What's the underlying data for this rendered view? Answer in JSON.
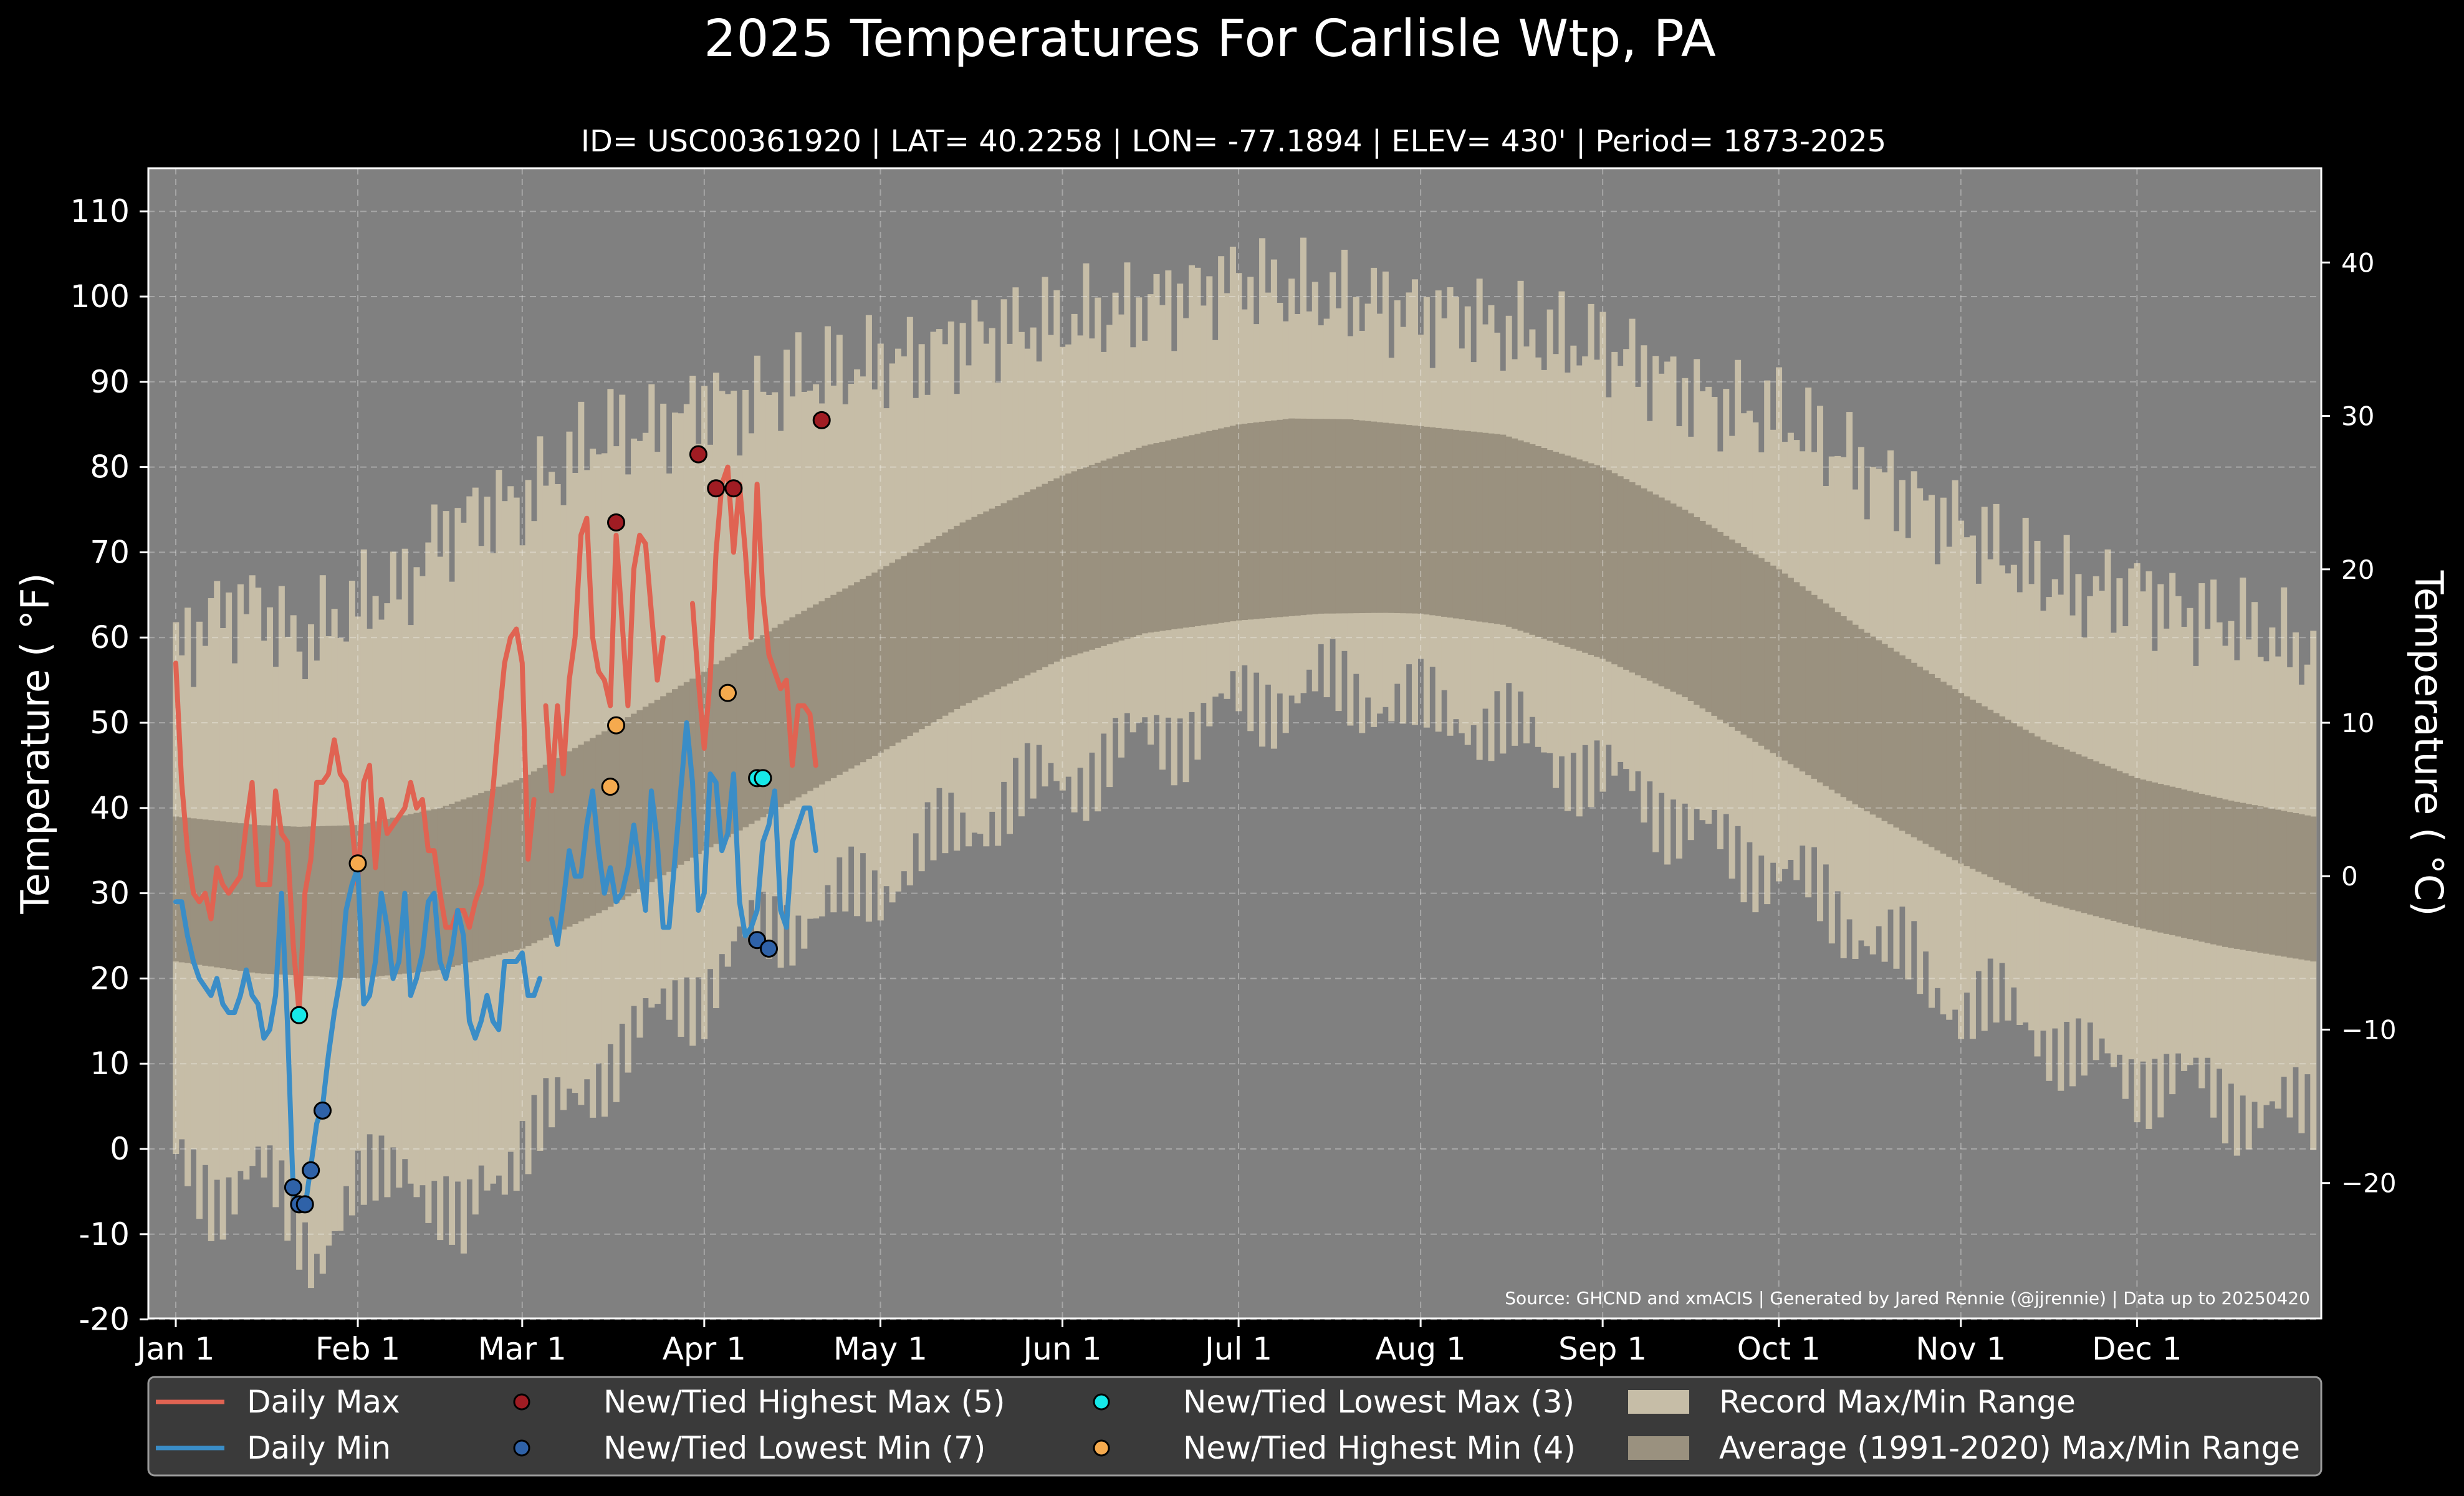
{
  "chart_data": {
    "type": "line",
    "title": "2025 Temperatures For Carlisle Wtp, PA",
    "subtitle": "ID= USC00361920 | LAT= 40.2258 | LON= -77.1894 | ELEV= 430' | Period= 1873-2025",
    "ylabel": "Temperature ($^\\circ$F)",
    "ylabel_display": "Temperature ( °F)",
    "ylabel_right_display": "Temperature ( °C)",
    "source_note": "Source: GHCND and xmACIS | Generated by Jared Rennie (@jjrennie) | Data up to 20250420",
    "xlim": [
      1,
      365
    ],
    "ylim": [
      -20,
      115
    ],
    "x_unit": "day of year 2025 (1 = Jan 1)",
    "x_ticks": [
      {
        "day": 1,
        "label": "Jan 1"
      },
      {
        "day": 32,
        "label": "Feb 1"
      },
      {
        "day": 60,
        "label": "Mar 1"
      },
      {
        "day": 91,
        "label": "Apr 1"
      },
      {
        "day": 121,
        "label": "May 1"
      },
      {
        "day": 152,
        "label": "Jun 1"
      },
      {
        "day": 182,
        "label": "Jul 1"
      },
      {
        "day": 213,
        "label": "Aug 1"
      },
      {
        "day": 244,
        "label": "Sep 1"
      },
      {
        "day": 274,
        "label": "Oct 1"
      },
      {
        "day": 305,
        "label": "Nov 1"
      },
      {
        "day": 335,
        "label": "Dec 1"
      }
    ],
    "y_ticks": [
      -20,
      -10,
      0,
      10,
      20,
      30,
      40,
      50,
      60,
      70,
      80,
      90,
      100,
      110
    ],
    "y_ticks_right_c": [
      -20,
      -10,
      0,
      10,
      20,
      30,
      40
    ],
    "grid": true,
    "legend_position": "bottom",
    "colors": {
      "background": "#000000",
      "plot_bg": "#808080",
      "record_range": "#c6bda7",
      "average_range": "#9a917f",
      "daily_max": "#e06352",
      "daily_min": "#3a8dc7",
      "new_high_max": "#a01c23",
      "new_low_min": "#2f62a8",
      "new_low_max": "#16e8e8",
      "new_high_min": "#f5aa4e"
    },
    "average_range": {
      "min_anchors": [
        [
          1,
          22
        ],
        [
          15,
          20.6
        ],
        [
          32,
          20
        ],
        [
          46,
          21
        ],
        [
          60,
          23.5
        ],
        [
          74,
          28
        ],
        [
          91,
          35
        ],
        [
          105,
          40.5
        ],
        [
          121,
          46.5
        ],
        [
          135,
          52
        ],
        [
          152,
          57.5
        ],
        [
          166,
          60.5
        ],
        [
          182,
          62
        ],
        [
          196,
          62.8
        ],
        [
          207,
          62.9
        ],
        [
          213,
          62.8
        ],
        [
          227,
          61.5
        ],
        [
          244,
          57.5
        ],
        [
          258,
          53
        ],
        [
          274,
          46
        ],
        [
          288,
          40
        ],
        [
          305,
          33.5
        ],
        [
          319,
          29
        ],
        [
          335,
          26
        ],
        [
          350,
          23.7
        ],
        [
          365,
          22
        ]
      ],
      "max_anchors": [
        [
          1,
          39
        ],
        [
          15,
          38
        ],
        [
          22,
          37.8
        ],
        [
          32,
          38
        ],
        [
          46,
          40
        ],
        [
          60,
          43.5
        ],
        [
          74,
          49
        ],
        [
          91,
          56
        ],
        [
          105,
          62
        ],
        [
          121,
          68
        ],
        [
          135,
          73.5
        ],
        [
          152,
          79
        ],
        [
          166,
          82.5
        ],
        [
          182,
          85
        ],
        [
          191,
          85.7
        ],
        [
          201,
          85.6
        ],
        [
          213,
          84.8
        ],
        [
          227,
          83.8
        ],
        [
          244,
          80
        ],
        [
          258,
          75
        ],
        [
          274,
          68
        ],
        [
          288,
          61
        ],
        [
          305,
          53.5
        ],
        [
          319,
          48
        ],
        [
          335,
          43.5
        ],
        [
          350,
          41
        ],
        [
          365,
          39
        ]
      ]
    },
    "record_range": {
      "max_anchors": [
        [
          1,
          58
        ],
        [
          8,
          63
        ],
        [
          15,
          64
        ],
        [
          22,
          59
        ],
        [
          32,
          64
        ],
        [
          40,
          66
        ],
        [
          46,
          72
        ],
        [
          53,
          75
        ],
        [
          60,
          76
        ],
        [
          67,
          80
        ],
        [
          74,
          84
        ],
        [
          81,
          84
        ],
        [
          88,
          86
        ],
        [
          91,
          88
        ],
        [
          98,
          87
        ],
        [
          105,
          90
        ],
        [
          112,
          91
        ],
        [
          121,
          92
        ],
        [
          128,
          93
        ],
        [
          135,
          95
        ],
        [
          142,
          96
        ],
        [
          152,
          97
        ],
        [
          160,
          98
        ],
        [
          166,
          99
        ],
        [
          172,
          100
        ],
        [
          182,
          102
        ],
        [
          189,
          101
        ],
        [
          196,
          100
        ],
        [
          207,
          99
        ],
        [
          213,
          98
        ],
        [
          220,
          98
        ],
        [
          227,
          96
        ],
        [
          234,
          95
        ],
        [
          244,
          94
        ],
        [
          251,
          92
        ],
        [
          258,
          89
        ],
        [
          265,
          87
        ],
        [
          274,
          86
        ],
        [
          281,
          83
        ],
        [
          288,
          80
        ],
        [
          295,
          77
        ],
        [
          305,
          73
        ],
        [
          312,
          70
        ],
        [
          319,
          67
        ],
        [
          326,
          65
        ],
        [
          335,
          66
        ],
        [
          342,
          63
        ],
        [
          350,
          62
        ],
        [
          358,
          60
        ],
        [
          365,
          58
        ]
      ],
      "min_anchors": [
        [
          1,
          -2
        ],
        [
          8,
          -5
        ],
        [
          15,
          -3
        ],
        [
          22,
          -9
        ],
        [
          25,
          -12
        ],
        [
          32,
          -6
        ],
        [
          40,
          0
        ],
        [
          46,
          -8
        ],
        [
          50,
          -11
        ],
        [
          53,
          -4
        ],
        [
          60,
          1
        ],
        [
          67,
          4
        ],
        [
          74,
          10
        ],
        [
          81,
          14
        ],
        [
          88,
          18
        ],
        [
          91,
          19
        ],
        [
          98,
          24
        ],
        [
          105,
          27
        ],
        [
          112,
          28
        ],
        [
          121,
          31
        ],
        [
          128,
          35
        ],
        [
          135,
          37
        ],
        [
          142,
          41
        ],
        [
          152,
          43
        ],
        [
          160,
          46
        ],
        [
          166,
          48
        ],
        [
          172,
          49
        ],
        [
          182,
          52
        ],
        [
          189,
          53
        ],
        [
          196,
          54
        ],
        [
          207,
          53
        ],
        [
          213,
          51
        ],
        [
          220,
          51
        ],
        [
          227,
          49
        ],
        [
          234,
          47
        ],
        [
          244,
          43
        ],
        [
          251,
          42
        ],
        [
          258,
          38
        ],
        [
          265,
          35
        ],
        [
          274,
          33
        ],
        [
          281,
          29
        ],
        [
          288,
          26
        ],
        [
          295,
          22
        ],
        [
          305,
          17
        ],
        [
          312,
          16
        ],
        [
          319,
          14
        ],
        [
          326,
          10
        ],
        [
          335,
          9
        ],
        [
          342,
          8
        ],
        [
          350,
          6
        ],
        [
          358,
          4
        ],
        [
          365,
          4
        ]
      ]
    },
    "series": [
      {
        "name": "Daily Max",
        "x": [
          1,
          2,
          3,
          4,
          5,
          6,
          7,
          8,
          9,
          10,
          11,
          12,
          13,
          14,
          15,
          16,
          17,
          18,
          19,
          20,
          21,
          22,
          23,
          24,
          25,
          26,
          27,
          28,
          29,
          30,
          31,
          32,
          33,
          34,
          35,
          36,
          37,
          38,
          39,
          40,
          41,
          42,
          43,
          44,
          45,
          46,
          47,
          48,
          49,
          50,
          51,
          52,
          53,
          54,
          55,
          56,
          57,
          58,
          59,
          60,
          61,
          62,
          63,
          64,
          65,
          66,
          67,
          68,
          69,
          70,
          71,
          72,
          73,
          74,
          75,
          76,
          77,
          78,
          79,
          80,
          81,
          82,
          83,
          84,
          85,
          86,
          87,
          88,
          89,
          90,
          91,
          92,
          93,
          94,
          95,
          96,
          97,
          98,
          99,
          100,
          101,
          102,
          103,
          104,
          105,
          106,
          107,
          108,
          109,
          110
        ],
        "values": [
          57,
          43,
          35,
          30,
          29,
          30,
          27,
          33,
          31,
          30,
          31,
          32,
          38,
          43,
          31,
          31,
          31,
          42,
          37,
          36,
          24,
          16,
          30,
          34,
          43,
          43,
          44,
          48,
          44,
          43,
          38,
          31,
          43,
          45,
          33,
          41,
          37,
          38,
          39,
          40,
          43,
          40,
          41,
          35,
          35,
          30,
          26,
          26,
          28,
          28,
          26,
          29,
          31,
          36,
          42,
          50,
          57,
          60,
          61,
          57,
          34,
          41,
          null,
          52,
          42,
          52,
          44,
          55,
          60,
          72,
          74,
          60,
          56,
          55,
          52,
          72,
          62,
          52,
          68,
          72,
          71,
          63,
          55,
          60,
          null,
          null,
          null,
          null,
          64,
          55,
          47,
          55,
          70,
          78,
          80,
          70,
          78,
          70,
          60,
          78,
          65,
          58,
          56,
          54,
          55,
          45,
          52,
          52,
          51,
          45
        ]
      },
      {
        "name": "Daily Min",
        "x": [
          1,
          2,
          3,
          4,
          5,
          6,
          7,
          8,
          9,
          10,
          11,
          12,
          13,
          14,
          15,
          16,
          17,
          18,
          19,
          20,
          21,
          22,
          23,
          24,
          25,
          26,
          27,
          28,
          29,
          30,
          31,
          32,
          33,
          34,
          35,
          36,
          37,
          38,
          39,
          40,
          41,
          42,
          43,
          44,
          45,
          46,
          47,
          48,
          49,
          50,
          51,
          52,
          53,
          54,
          55,
          56,
          57,
          58,
          59,
          60,
          61,
          62,
          63,
          64,
          65,
          66,
          67,
          68,
          69,
          70,
          71,
          72,
          73,
          74,
          75,
          76,
          77,
          78,
          79,
          80,
          81,
          82,
          83,
          84,
          85,
          86,
          87,
          88,
          89,
          90,
          91,
          92,
          93,
          94,
          95,
          96,
          97,
          98,
          99,
          100,
          101,
          102,
          103,
          104,
          105,
          106,
          107,
          108,
          109,
          110
        ],
        "values": [
          29,
          29,
          25,
          22,
          20,
          19,
          18,
          20,
          17,
          16,
          16,
          18,
          21,
          18,
          17,
          13,
          14,
          18,
          30,
          15,
          -5,
          -7,
          -7,
          -2,
          3,
          5,
          11,
          16,
          20,
          28,
          31,
          33,
          17,
          18,
          22,
          30,
          26,
          20,
          22,
          30,
          18,
          20,
          23,
          29,
          30,
          22,
          20,
          23,
          28,
          25,
          15,
          13,
          15,
          18,
          15,
          14,
          22,
          22,
          22,
          23,
          18,
          18,
          20,
          null,
          27,
          24,
          29,
          35,
          32,
          32,
          38,
          42,
          35,
          30,
          33,
          29,
          30,
          33,
          38,
          33,
          28,
          42,
          36,
          26,
          26,
          34,
          42,
          50,
          43,
          28,
          30,
          44,
          43,
          35,
          37,
          44,
          29,
          25,
          26,
          28,
          36,
          38,
          42,
          28,
          26,
          36,
          38,
          40,
          40,
          35
        ]
      }
    ],
    "markers": [
      {
        "name": "New/Tied Highest Max (5)",
        "points": [
          [
            76,
            73.5
          ],
          [
            90,
            81.5
          ],
          [
            93,
            77.5
          ],
          [
            96,
            77.5
          ],
          [
            111,
            85.5
          ]
        ]
      },
      {
        "name": "New/Tied Lowest Min (7)",
        "points": [
          [
            21,
            -4.5
          ],
          [
            22,
            -6.5
          ],
          [
            23,
            -6.5
          ],
          [
            24,
            -2.5
          ],
          [
            26,
            4.5
          ],
          [
            100,
            24.5
          ],
          [
            102,
            23.5
          ]
        ]
      },
      {
        "name": "New/Tied Lowest Max (3)",
        "points": [
          [
            22,
            15.7
          ],
          [
            100,
            43.5
          ],
          [
            101,
            43.5
          ]
        ]
      },
      {
        "name": "New/Tied Highest Min (4)",
        "points": [
          [
            32,
            33.5
          ],
          [
            75,
            42.5
          ],
          [
            76,
            49.7
          ],
          [
            95,
            53.5
          ]
        ]
      }
    ],
    "legend": [
      {
        "type": "line",
        "color_key": "daily_max",
        "label": "Daily Max"
      },
      {
        "type": "line",
        "color_key": "daily_min",
        "label": "Daily Min"
      },
      {
        "type": "marker",
        "color_key": "new_high_max",
        "label": "New/Tied Highest Max (5)"
      },
      {
        "type": "marker",
        "color_key": "new_low_min",
        "label": "New/Tied Lowest Min (7)"
      },
      {
        "type": "marker",
        "color_key": "new_low_max",
        "label": "New/Tied Lowest Max (3)"
      },
      {
        "type": "marker",
        "color_key": "new_high_min",
        "label": "New/Tied Highest Min (4)"
      },
      {
        "type": "patch",
        "color_key": "record_range",
        "label": "Record Max/Min Range"
      },
      {
        "type": "patch",
        "color_key": "average_range",
        "label": "Average (1991-2020) Max/Min Range"
      }
    ]
  }
}
